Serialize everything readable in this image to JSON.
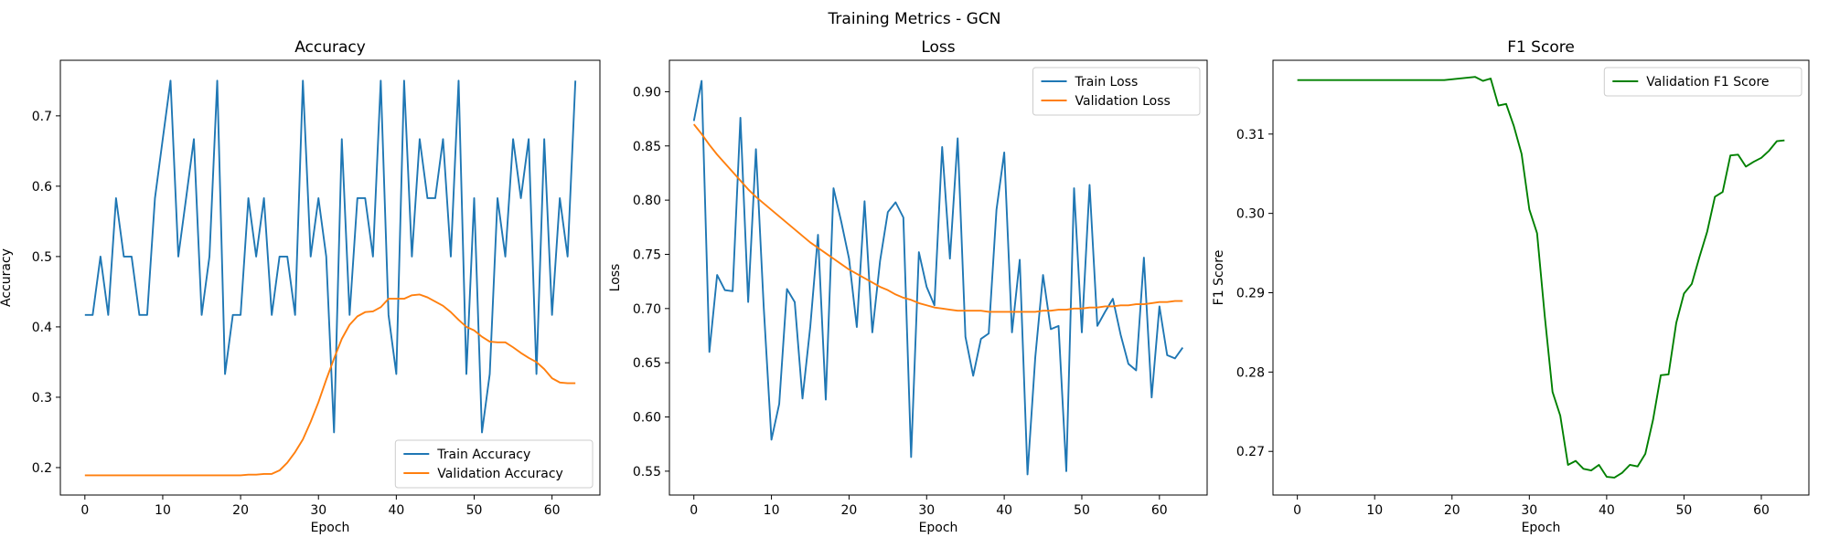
{
  "figure": {
    "title": "Training Metrics - GCN"
  },
  "chart_data": [
    {
      "type": "line",
      "title": "Accuracy",
      "xlabel": "Epoch",
      "ylabel": "Accuracy",
      "xlim": [
        -3.15,
        66.15
      ],
      "ylim": [
        0.161,
        0.779
      ],
      "xticks": [
        0,
        10,
        20,
        30,
        40,
        50,
        60
      ],
      "yticks": [
        0.2,
        0.3,
        0.4,
        0.5,
        0.6,
        0.7
      ],
      "ytick_labels": [
        "0.2",
        "0.3",
        "0.4",
        "0.5",
        "0.6",
        "0.7"
      ],
      "legend": "lower-right",
      "series": [
        {
          "name": "Train Accuracy",
          "color": "#1f77b4",
          "values": [
            0.417,
            0.417,
            0.5,
            0.417,
            0.583,
            0.5,
            0.5,
            0.417,
            0.417,
            0.583,
            0.667,
            0.75,
            0.5,
            0.583,
            0.667,
            0.417,
            0.5,
            0.75,
            0.333,
            0.417,
            0.417,
            0.583,
            0.5,
            0.583,
            0.417,
            0.5,
            0.5,
            0.417,
            0.75,
            0.5,
            0.583,
            0.5,
            0.25,
            0.667,
            0.417,
            0.583,
            0.583,
            0.5,
            0.75,
            0.417,
            0.333,
            0.75,
            0.5,
            0.667,
            0.583,
            0.583,
            0.667,
            0.5,
            0.75,
            0.333,
            0.583,
            0.25,
            0.333,
            0.583,
            0.5,
            0.667,
            0.583,
            0.667,
            0.333,
            0.667,
            0.417,
            0.583,
            0.5,
            0.75
          ]
        },
        {
          "name": "Validation Accuracy",
          "color": "#ff7f0e",
          "values": [
            0.189,
            0.189,
            0.189,
            0.189,
            0.189,
            0.189,
            0.189,
            0.189,
            0.189,
            0.189,
            0.189,
            0.189,
            0.189,
            0.189,
            0.189,
            0.189,
            0.189,
            0.189,
            0.189,
            0.189,
            0.189,
            0.19,
            0.19,
            0.191,
            0.191,
            0.196,
            0.207,
            0.222,
            0.24,
            0.265,
            0.293,
            0.325,
            0.355,
            0.383,
            0.403,
            0.415,
            0.421,
            0.422,
            0.428,
            0.44,
            0.44,
            0.44,
            0.445,
            0.446,
            0.442,
            0.436,
            0.43,
            0.421,
            0.41,
            0.4,
            0.395,
            0.386,
            0.379,
            0.378,
            0.378,
            0.371,
            0.363,
            0.356,
            0.35,
            0.34,
            0.327,
            0.321,
            0.32,
            0.32
          ]
        }
      ]
    },
    {
      "type": "line",
      "title": "Loss",
      "xlabel": "Epoch",
      "ylabel": "Loss",
      "xlim": [
        -3.15,
        66.15
      ],
      "ylim": [
        0.528,
        0.929
      ],
      "xticks": [
        0,
        10,
        20,
        30,
        40,
        50,
        60
      ],
      "yticks": [
        0.55,
        0.6,
        0.65,
        0.7,
        0.75,
        0.8,
        0.85,
        0.9
      ],
      "ytick_labels": [
        "0.55",
        "0.60",
        "0.65",
        "0.70",
        "0.75",
        "0.80",
        "0.85",
        "0.90"
      ],
      "legend": "upper-right",
      "series": [
        {
          "name": "Train Loss",
          "color": "#1f77b4",
          "values": [
            0.873,
            0.91,
            0.66,
            0.731,
            0.717,
            0.716,
            0.876,
            0.706,
            0.847,
            0.702,
            0.579,
            0.612,
            0.718,
            0.706,
            0.617,
            0.683,
            0.768,
            0.616,
            0.811,
            0.78,
            0.746,
            0.683,
            0.799,
            0.678,
            0.744,
            0.789,
            0.798,
            0.784,
            0.563,
            0.752,
            0.72,
            0.703,
            0.849,
            0.746,
            0.857,
            0.674,
            0.638,
            0.672,
            0.677,
            0.791,
            0.844,
            0.678,
            0.745,
            0.547,
            0.655,
            0.731,
            0.681,
            0.684,
            0.55,
            0.811,
            0.678,
            0.814,
            0.684,
            0.697,
            0.709,
            0.676,
            0.649,
            0.643,
            0.747,
            0.618,
            0.702,
            0.657,
            0.654,
            0.664
          ]
        },
        {
          "name": "Validation Loss",
          "color": "#ff7f0e",
          "values": [
            0.87,
            0.861,
            0.851,
            0.842,
            0.834,
            0.826,
            0.818,
            0.81,
            0.803,
            0.797,
            0.791,
            0.785,
            0.779,
            0.773,
            0.767,
            0.761,
            0.756,
            0.751,
            0.746,
            0.741,
            0.736,
            0.732,
            0.728,
            0.724,
            0.72,
            0.717,
            0.713,
            0.71,
            0.708,
            0.705,
            0.703,
            0.701,
            0.7,
            0.699,
            0.698,
            0.698,
            0.698,
            0.698,
            0.697,
            0.697,
            0.697,
            0.697,
            0.697,
            0.697,
            0.697,
            0.698,
            0.698,
            0.699,
            0.699,
            0.7,
            0.7,
            0.701,
            0.701,
            0.702,
            0.702,
            0.703,
            0.703,
            0.704,
            0.704,
            0.705,
            0.706,
            0.706,
            0.707,
            0.707
          ]
        }
      ]
    },
    {
      "type": "line",
      "title": "F1 Score",
      "xlabel": "Epoch",
      "ylabel": "F1 Score",
      "xlim": [
        -3.15,
        66.15
      ],
      "ylim": [
        0.2645,
        0.3193
      ],
      "xticks": [
        0,
        10,
        20,
        30,
        40,
        50,
        60
      ],
      "yticks": [
        0.27,
        0.28,
        0.29,
        0.3,
        0.31
      ],
      "ytick_labels": [
        "0.27",
        "0.28",
        "0.29",
        "0.30",
        "0.31"
      ],
      "legend": "upper-right",
      "series": [
        {
          "name": "Validation F1 Score",
          "color": "#008000",
          "values": [
            0.3168,
            0.3168,
            0.3168,
            0.3168,
            0.3168,
            0.3168,
            0.3168,
            0.3168,
            0.3168,
            0.3168,
            0.3168,
            0.3168,
            0.3168,
            0.3168,
            0.3168,
            0.3168,
            0.3168,
            0.3168,
            0.3168,
            0.3168,
            0.3169,
            0.317,
            0.3171,
            0.3172,
            0.3167,
            0.317,
            0.3136,
            0.3138,
            0.311,
            0.3075,
            0.3005,
            0.2975,
            0.287,
            0.2775,
            0.2745,
            0.2683,
            0.2688,
            0.2678,
            0.2676,
            0.2683,
            0.2668,
            0.2667,
            0.2673,
            0.2683,
            0.2681,
            0.2697,
            0.274,
            0.2796,
            0.2797,
            0.2862,
            0.2899,
            0.2911,
            0.2945,
            0.2977,
            0.3021,
            0.3027,
            0.3073,
            0.3074,
            0.3059,
            0.3065,
            0.307,
            0.3079,
            0.3091,
            0.3092
          ]
        }
      ]
    }
  ]
}
